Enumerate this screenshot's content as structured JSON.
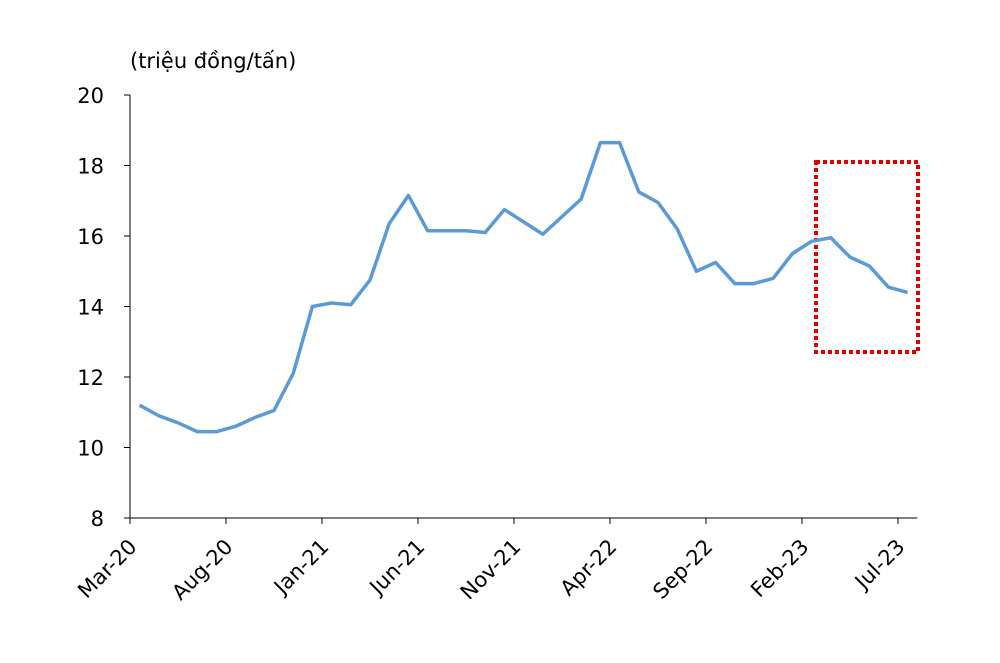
{
  "chart_data": {
    "type": "line",
    "y_label": "(triệu đồng/tấn)",
    "categories": [
      "Mar-20",
      null,
      null,
      null,
      null,
      "Aug-20",
      null,
      null,
      null,
      null,
      "Jan-21",
      null,
      null,
      null,
      null,
      "Jun-21",
      null,
      null,
      null,
      null,
      "Nov-21",
      null,
      null,
      null,
      null,
      "Apr-22",
      null,
      null,
      null,
      null,
      "Sep-22",
      null,
      null,
      null,
      null,
      "Feb-23",
      null,
      null,
      null,
      null,
      "Jul-23"
    ],
    "series": [
      {
        "color": "#5b9bd5",
        "values": [
          11.2,
          10.9,
          10.7,
          10.45,
          10.45,
          10.6,
          10.85,
          11.05,
          12.1,
          14.0,
          14.1,
          14.05,
          14.75,
          16.35,
          17.15,
          16.15,
          16.15,
          16.15,
          16.1,
          16.75,
          16.4,
          16.05,
          16.55,
          17.05,
          18.65,
          18.65,
          17.25,
          16.95,
          16.2,
          15.0,
          15.25,
          14.65,
          14.65,
          14.8,
          15.5,
          15.85,
          15.95,
          15.4,
          15.15,
          14.55,
          14.4
        ]
      }
    ],
    "ylim": [
      8,
      20
    ],
    "yticks": [
      8,
      10,
      12,
      14,
      16,
      18,
      20
    ]
  }
}
